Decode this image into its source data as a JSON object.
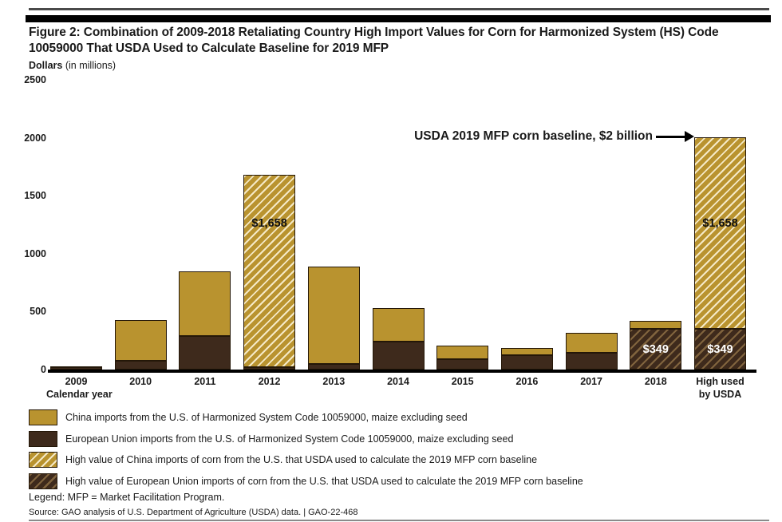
{
  "header": {
    "title": "Figure 2: Combination of 2009-2018 Retaliating Country High Import Values for Corn for Harmonized System (HS) Code 10059000 That USDA Used to Calculate Baseline for 2019 MFP",
    "units_bold": "Dollars",
    "units_rest": " (in millions)"
  },
  "annotation": {
    "text": "USDA 2019 MFP corn baseline, $2 billion"
  },
  "colors": {
    "china_gold": "#B9932F",
    "eu_brown": "#3E2A1C",
    "axis_black": "#000000"
  },
  "chart_data": {
    "type": "bar",
    "stacked": true,
    "title": "Combination of 2009-2018 Retaliating Country High Import Values for Corn (HS 10059000) used for 2019 MFP baseline",
    "xlabel": "Calendar year",
    "ylabel": "Dollars (in millions)",
    "ylim": [
      0,
      2500
    ],
    "y_ticks": [
      0,
      500,
      1000,
      1500,
      2000,
      2500
    ],
    "grid": false,
    "legend_position": "below",
    "categories": [
      "2009",
      "2010",
      "2011",
      "2012",
      "2013",
      "2014",
      "2015",
      "2016",
      "2017",
      "2018",
      "High used\nby USDA"
    ],
    "series": [
      {
        "name": "eu-solid",
        "legend": "European Union imports from the U.S. of Harmonized System Code 10059000, maize excluding seed",
        "color": "#3E2A1C",
        "hatched": false,
        "values": [
          20,
          75,
          290,
          20,
          45,
          240,
          90,
          125,
          145,
          0,
          0
        ]
      },
      {
        "name": "eu-high-hatched",
        "legend": "High value of European Union imports of corn from the U.S. that USDA used to calculate the 2019 MFP corn baseline",
        "color": "#3E2A1C",
        "hatched": true,
        "values": [
          0,
          0,
          0,
          0,
          0,
          0,
          0,
          0,
          0,
          349,
          349
        ]
      },
      {
        "name": "china-solid",
        "legend": "China imports from the U.S. of Harmonized System Code 10059000, maize excluding seed",
        "color": "#B9932F",
        "hatched": false,
        "values": [
          8,
          350,
          555,
          0,
          840,
          290,
          115,
          60,
          170,
          72,
          0
        ]
      },
      {
        "name": "china-high-hatched",
        "legend": "High value of China imports of corn from the U.S. that USDA used to calculate the 2019 MFP corn baseline",
        "color": "#B9932F",
        "hatched": true,
        "values": [
          0,
          0,
          0,
          1658,
          0,
          0,
          0,
          0,
          0,
          0,
          1658
        ]
      }
    ],
    "bar_labels": [
      {
        "bar_index": 3,
        "text": "$1,658",
        "color": "#111111",
        "y_value": 1260
      },
      {
        "bar_index": 10,
        "text": "$1,658",
        "color": "#111111",
        "y_value": 1260
      },
      {
        "bar_index": 9,
        "text": "$349",
        "color": "#ffffff",
        "y_value": 172
      },
      {
        "bar_index": 10,
        "text": "$349",
        "color": "#ffffff",
        "y_value": 172
      }
    ]
  },
  "legend": {
    "items": [
      {
        "swatch": "china-solid",
        "label": "China imports from the U.S. of Harmonized System Code 10059000, maize excluding seed"
      },
      {
        "swatch": "eu-solid",
        "label": "European Union imports from the U.S. of Harmonized System Code 10059000, maize excluding seed"
      },
      {
        "swatch": "china-hatch",
        "label": "High value of China imports of corn from the U.S. that USDA used to calculate the 2019 MFP corn baseline"
      },
      {
        "swatch": "eu-hatch",
        "label": "High value of European Union imports of corn from the U.S. that USDA used to calculate the 2019 MFP corn baseline"
      }
    ]
  },
  "footer": {
    "legend_note": "Legend: MFP = Market Facilitation Program.",
    "source": "Source: GAO analysis of U.S. Department of Agriculture (USDA) data.  |  GAO-22-468"
  }
}
